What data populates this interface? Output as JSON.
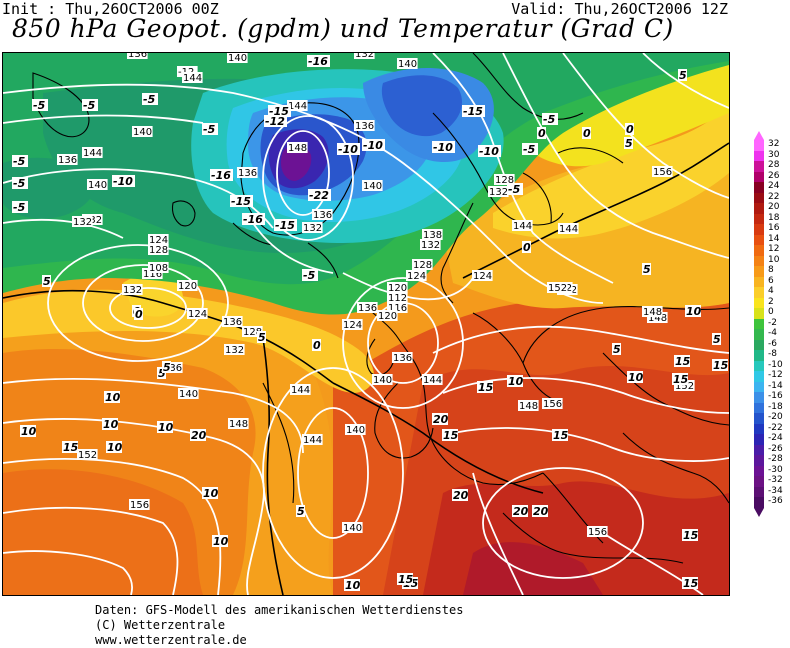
{
  "header": {
    "init": "Init : Thu,26OCT2006 00Z",
    "valid": "Valid: Thu,26OCT2006 12Z",
    "title": "850 hPa Geopot. (gpdm) und Temperatur (Grad C)"
  },
  "legend": {
    "values": [
      "32",
      "30",
      "28",
      "26",
      "24",
      "22",
      "20",
      "18",
      "16",
      "14",
      "12",
      "10",
      "8",
      "6",
      "4",
      "2",
      "0",
      "-2",
      "-4",
      "-6",
      "-8",
      "-10",
      "-12",
      "-14",
      "-16",
      "-18",
      "-20",
      "-22",
      "-24",
      "-26",
      "-28",
      "-30",
      "-32",
      "-34",
      "-36"
    ],
    "colors": [
      "#ff66ff",
      "#ee33ee",
      "#cc1199",
      "#b0006a",
      "#880022",
      "#9a0c14",
      "#b01a10",
      "#c42810",
      "#d83a10",
      "#e85010",
      "#f06a10",
      "#f48214",
      "#f79a18",
      "#f8b420",
      "#fbce2a",
      "#f9e41e",
      "#d8e21a",
      "#3ec43c",
      "#34b84e",
      "#2aa860",
      "#20b888",
      "#26c8bc",
      "#30c8e6",
      "#3cb4f0",
      "#3c90e8",
      "#3072dc",
      "#2454cc",
      "#2038c0",
      "#2c24b4",
      "#4a1ca8",
      "#5c169c",
      "#6c1294",
      "#6c1284",
      "#5c1074",
      "#4a0c62"
    ]
  },
  "contour_labels": {
    "height": [
      {
        "t": "136"
      },
      {
        "t": "132"
      },
      {
        "t": "140"
      },
      {
        "t": "-12"
      },
      {
        "t": "144"
      },
      {
        "t": "140"
      },
      {
        "t": "144"
      },
      {
        "t": "140"
      },
      {
        "t": "148"
      },
      {
        "t": "136"
      },
      {
        "t": "140"
      },
      {
        "t": "136"
      },
      {
        "t": "132"
      },
      {
        "t": "124"
      },
      {
        "t": "128"
      },
      {
        "t": "132"
      },
      {
        "t": "136"
      },
      {
        "t": "138"
      },
      {
        "t": "132"
      },
      {
        "t": "128"
      },
      {
        "t": "124"
      },
      {
        "t": "120"
      },
      {
        "t": "112"
      },
      {
        "t": "116"
      },
      {
        "t": "120"
      },
      {
        "t": "124"
      },
      {
        "t": "136"
      },
      {
        "t": "144"
      },
      {
        "t": "152"
      },
      {
        "t": "148"
      },
      {
        "t": "136"
      },
      {
        "t": "140"
      },
      {
        "t": "144"
      },
      {
        "t": "152"
      },
      {
        "t": "156"
      },
      {
        "t": "144"
      },
      {
        "t": "148"
      },
      {
        "t": "152"
      },
      {
        "t": "156"
      },
      {
        "t": "140"
      },
      {
        "t": "132"
      },
      {
        "t": "128"
      },
      {
        "t": "124"
      },
      {
        "t": "120"
      },
      {
        "t": "116"
      },
      {
        "t": "108"
      },
      {
        "t": "132"
      },
      {
        "t": "136"
      },
      {
        "t": "140"
      },
      {
        "t": "144"
      },
      {
        "t": "124"
      },
      {
        "t": "128"
      },
      {
        "t": "132"
      },
      {
        "t": "136"
      },
      {
        "t": "140"
      },
      {
        "t": "144"
      },
      {
        "t": "148"
      },
      {
        "t": "152"
      },
      {
        "t": "156"
      },
      {
        "t": "156"
      },
      {
        "t": "152"
      },
      {
        "t": "144"
      },
      {
        "t": "148"
      },
      {
        "t": "140"
      },
      {
        "t": "136"
      },
      {
        "t": "132"
      }
    ],
    "temperature": [
      {
        "t": "-5"
      },
      {
        "t": "-5"
      },
      {
        "t": "-5"
      },
      {
        "t": "-5"
      },
      {
        "t": "-10"
      },
      {
        "t": "-5"
      },
      {
        "t": "-5"
      },
      {
        "t": "-5"
      },
      {
        "t": "-16"
      },
      {
        "t": "-12"
      },
      {
        "t": "-16"
      },
      {
        "t": "-15"
      },
      {
        "t": "-15"
      },
      {
        "t": "-10"
      },
      {
        "t": "-10"
      },
      {
        "t": "-15"
      },
      {
        "t": "-22"
      },
      {
        "t": "-16"
      },
      {
        "t": "-15"
      },
      {
        "t": "-10"
      },
      {
        "t": "-10"
      },
      {
        "t": "-5"
      },
      {
        "t": "-5"
      },
      {
        "t": "0"
      },
      {
        "t": "-5"
      },
      {
        "t": "0"
      },
      {
        "t": "0"
      },
      {
        "t": "5"
      },
      {
        "t": "5"
      },
      {
        "t": "0"
      },
      {
        "t": "5"
      },
      {
        "t": "0"
      },
      {
        "t": "0"
      },
      {
        "t": "5"
      },
      {
        "t": "10"
      },
      {
        "t": "5"
      },
      {
        "t": "10"
      },
      {
        "t": "15"
      },
      {
        "t": "15"
      },
      {
        "t": "10"
      },
      {
        "t": "15"
      },
      {
        "t": "10"
      },
      {
        "t": "15"
      },
      {
        "t": "15"
      },
      {
        "t": "20"
      },
      {
        "t": "20"
      },
      {
        "t": "20"
      },
      {
        "t": "15"
      },
      {
        "t": "15"
      },
      {
        "t": "10"
      },
      {
        "t": "10"
      },
      {
        "t": "5"
      },
      {
        "t": "10"
      },
      {
        "t": "10"
      },
      {
        "t": "5"
      },
      {
        "t": "15"
      },
      {
        "t": "5"
      },
      {
        "t": "10"
      },
      {
        "t": "10"
      },
      {
        "t": "15"
      },
      {
        "t": "20"
      },
      {
        "t": "15"
      },
      {
        "t": "-5"
      },
      {
        "t": "5"
      },
      {
        "t": "0"
      },
      {
        "t": "5"
      },
      {
        "t": "15"
      },
      {
        "t": "10"
      },
      {
        "t": "20"
      }
    ]
  },
  "footer": {
    "line1": "Daten: GFS-Modell des amerikanischen Wetterdienstes",
    "line2": "(C) Wetterzentrale",
    "line3": "www.wetterzentrale.de"
  }
}
